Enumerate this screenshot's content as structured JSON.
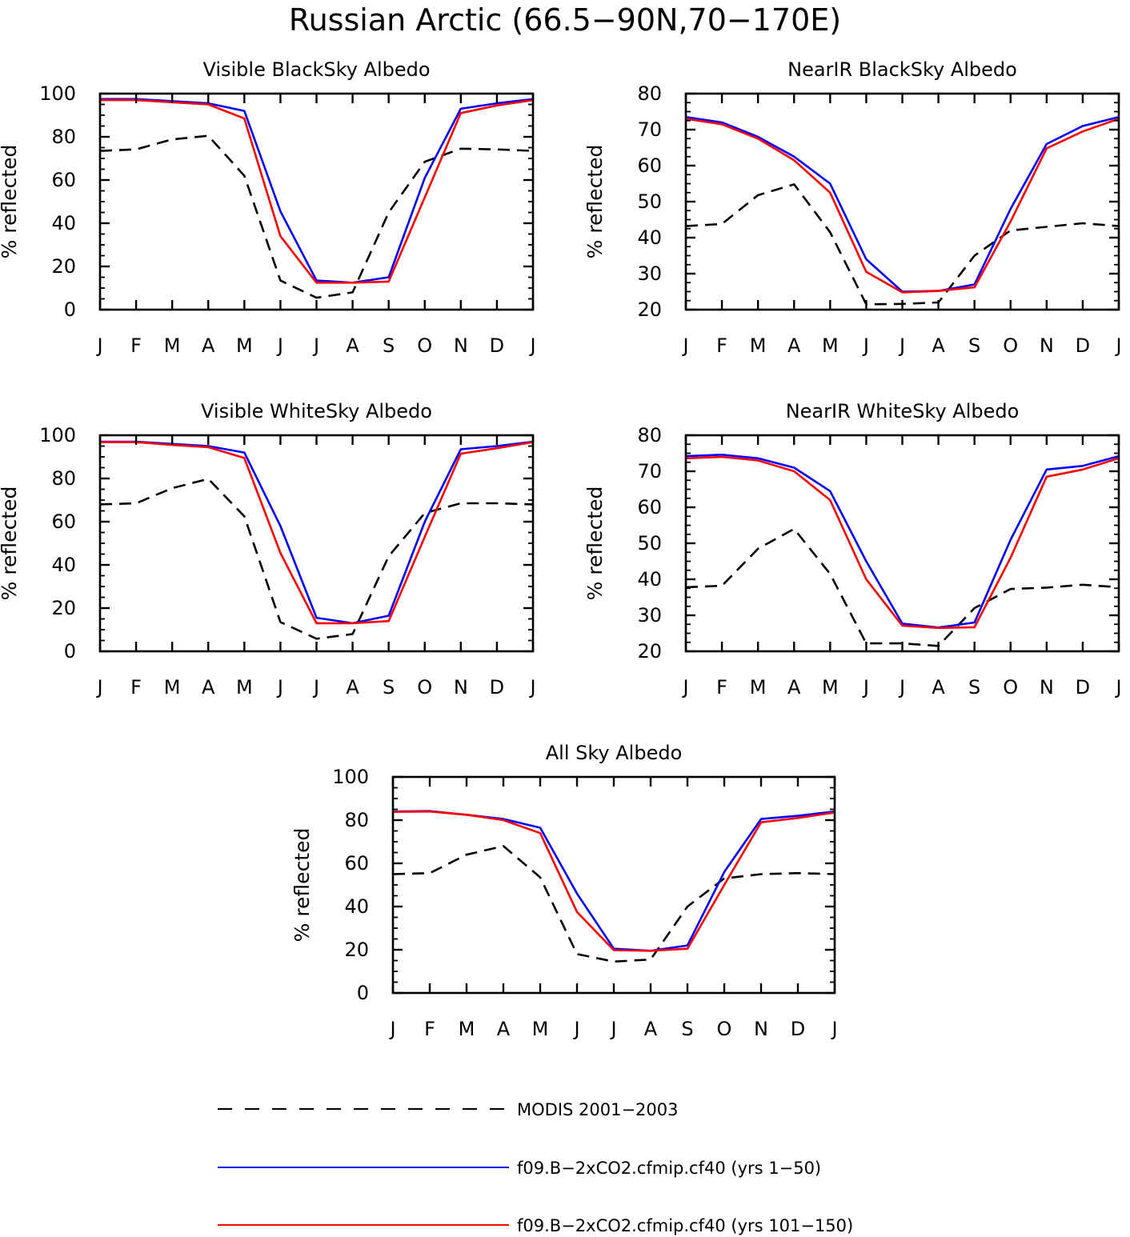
{
  "figure": {
    "title": "Russian Arctic (66.5−90N,70−170E)"
  },
  "legend": [
    {
      "label": "MODIS 2001−2003",
      "color": "#000000",
      "dash": true
    },
    {
      "label": "f09.B−2xCO2.cfmip.cf40 (yrs 1−50)",
      "color": "#0000ff",
      "dash": false
    },
    {
      "label": "f09.B−2xCO2.cfmip.cf40 (yrs 101−150)",
      "color": "#ff0000",
      "dash": false
    }
  ],
  "chart_data": [
    {
      "type": "line",
      "title": "Visible BlackSky Albedo",
      "xlabel": "",
      "ylabel": "% reflected",
      "categories": [
        "J",
        "F",
        "M",
        "A",
        "M",
        "J",
        "J",
        "A",
        "S",
        "O",
        "N",
        "D",
        "J"
      ],
      "ylim": [
        0,
        100
      ],
      "yticks": [
        0,
        20,
        40,
        60,
        80,
        100
      ],
      "series": [
        {
          "name": "MODIS 2001−2003",
          "color": "#000000",
          "dash": true,
          "values": [
            73.5,
            74.2,
            78.8,
            80.5,
            62,
            13.5,
            5.5,
            8,
            45,
            68.5,
            74.5,
            74.2,
            73.5
          ]
        },
        {
          "name": "f09.B−2xCO2.cfmip.cf40 (yrs 1−50)",
          "color": "#0000ff",
          "dash": false,
          "values": [
            97.5,
            97.5,
            96.5,
            95.5,
            92,
            45.5,
            13.5,
            12.5,
            15,
            61,
            93,
            95.5,
            97.5
          ]
        },
        {
          "name": "f09.B−2xCO2.cfmip.cf40 (yrs 101−150)",
          "color": "#ff0000",
          "dash": false,
          "values": [
            97,
            97,
            96,
            95,
            88.5,
            34,
            12.5,
            12.5,
            13,
            52,
            91,
            94.5,
            97
          ]
        }
      ]
    },
    {
      "type": "line",
      "title": "NearIR BlackSky Albedo",
      "xlabel": "",
      "ylabel": "% reflected",
      "categories": [
        "J",
        "F",
        "M",
        "A",
        "M",
        "J",
        "J",
        "A",
        "S",
        "O",
        "N",
        "D",
        "J"
      ],
      "ylim": [
        20,
        80
      ],
      "yticks": [
        20,
        30,
        40,
        50,
        60,
        70,
        80
      ],
      "series": [
        {
          "name": "MODIS 2001−2003",
          "color": "#000000",
          "dash": true,
          "values": [
            43.2,
            43.8,
            51.8,
            54.8,
            41.5,
            21.5,
            21.6,
            22,
            35,
            42,
            43,
            44,
            43.2
          ]
        },
        {
          "name": "f09.B−2xCO2.cfmip.cf40 (yrs 1−50)",
          "color": "#0000ff",
          "dash": false,
          "values": [
            73.5,
            72,
            68,
            62.5,
            55,
            34,
            25,
            25.2,
            27,
            48,
            66,
            71,
            73.5
          ]
        },
        {
          "name": "f09.B−2xCO2.cfmip.cf40 (yrs 101−150)",
          "color": "#ff0000",
          "dash": false,
          "values": [
            73,
            71.5,
            67.5,
            61.5,
            52.5,
            30.5,
            24.8,
            25.2,
            26.2,
            44.5,
            64.8,
            69.5,
            73
          ]
        }
      ]
    },
    {
      "type": "line",
      "title": "Visible WhiteSky Albedo",
      "xlabel": "",
      "ylabel": "% reflected",
      "categories": [
        "J",
        "F",
        "M",
        "A",
        "M",
        "J",
        "J",
        "A",
        "S",
        "O",
        "N",
        "D",
        "J"
      ],
      "ylim": [
        0,
        100
      ],
      "yticks": [
        0,
        20,
        40,
        60,
        80,
        100
      ],
      "series": [
        {
          "name": "MODIS 2001−2003",
          "color": "#000000",
          "dash": true,
          "values": [
            68,
            68.5,
            75.5,
            79.8,
            62.5,
            13.5,
            5.8,
            8,
            44,
            64,
            68.5,
            68.5,
            68
          ]
        },
        {
          "name": "f09.B−2xCO2.cfmip.cf40 (yrs 1−50)",
          "color": "#0000ff",
          "dash": false,
          "values": [
            97,
            97,
            96,
            95,
            92,
            58,
            15.5,
            13,
            16.5,
            60,
            93.5,
            95,
            97
          ]
        },
        {
          "name": "f09.B−2xCO2.cfmip.cf40 (yrs 101−150)",
          "color": "#ff0000",
          "dash": false,
          "values": [
            96.8,
            96.8,
            95.5,
            94.5,
            89.5,
            45.5,
            13,
            13,
            14,
            53,
            91.5,
            94,
            96.8
          ]
        }
      ]
    },
    {
      "type": "line",
      "title": "NearIR WhiteSky Albedo",
      "xlabel": "",
      "ylabel": "% reflected",
      "categories": [
        "J",
        "F",
        "M",
        "A",
        "M",
        "J",
        "J",
        "A",
        "S",
        "O",
        "N",
        "D",
        "J"
      ],
      "ylim": [
        20,
        80
      ],
      "yticks": [
        20,
        30,
        40,
        50,
        60,
        70,
        80
      ],
      "series": [
        {
          "name": "MODIS 2001−2003",
          "color": "#000000",
          "dash": true,
          "values": [
            37.8,
            38.2,
            48.5,
            54,
            41.5,
            22.2,
            22.2,
            21.5,
            32,
            37.3,
            37.7,
            38.5,
            37.8
          ]
        },
        {
          "name": "f09.B−2xCO2.cfmip.cf40 (yrs 1−50)",
          "color": "#0000ff",
          "dash": false,
          "values": [
            74.2,
            74.6,
            73.6,
            71,
            64.5,
            45,
            27.7,
            26.6,
            28,
            51,
            70.5,
            71.5,
            74.2
          ]
        },
        {
          "name": "f09.B−2xCO2.cfmip.cf40 (yrs 101−150)",
          "color": "#ff0000",
          "dash": false,
          "values": [
            73.6,
            74,
            73,
            70,
            62,
            40,
            27.1,
            26.5,
            26.7,
            46,
            68.5,
            70.5,
            73.6
          ]
        }
      ]
    },
    {
      "type": "line",
      "title": "All Sky Albedo",
      "xlabel": "",
      "ylabel": "% reflected",
      "categories": [
        "J",
        "F",
        "M",
        "A",
        "M",
        "J",
        "J",
        "A",
        "S",
        "O",
        "N",
        "D",
        "J"
      ],
      "ylim": [
        0,
        100
      ],
      "yticks": [
        0,
        20,
        40,
        60,
        80,
        100
      ],
      "series": [
        {
          "name": "MODIS 2001−2003",
          "color": "#000000",
          "dash": true,
          "values": [
            55,
            55.5,
            64,
            68,
            53.5,
            18,
            14.5,
            15.5,
            40,
            53,
            55,
            55.5,
            55
          ]
        },
        {
          "name": "f09.B−2xCO2.cfmip.cf40 (yrs 1−50)",
          "color": "#0000ff",
          "dash": false,
          "values": [
            84,
            84.2,
            82.5,
            80.5,
            76.5,
            46,
            20.5,
            19.5,
            22,
            56,
            80.5,
            82,
            84
          ]
        },
        {
          "name": "f09.B−2xCO2.cfmip.cf40 (yrs 101−150)",
          "color": "#ff0000",
          "dash": false,
          "values": [
            83.8,
            84,
            82.5,
            80,
            74,
            37.5,
            19.8,
            19.5,
            20.5,
            50,
            79,
            81,
            83.5
          ]
        }
      ]
    }
  ]
}
